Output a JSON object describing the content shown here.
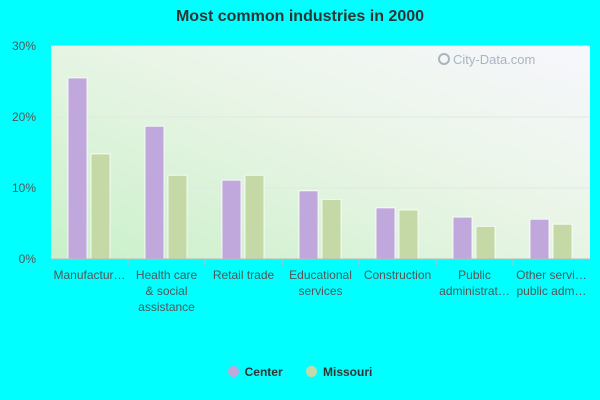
{
  "chart_data": {
    "type": "bar",
    "title": "Most common industries in 2000",
    "xlabel": "",
    "ylabel": "",
    "ylim": [
      0,
      30
    ],
    "yticks": [
      "0%",
      "10%",
      "20%",
      "30%"
    ],
    "ytick_values": [
      0,
      10,
      20,
      30
    ],
    "grid": true,
    "legend_placement": "bottom",
    "categories": [
      [
        "Manufactur…"
      ],
      [
        "Health care",
        "& social",
        "assistance"
      ],
      [
        "Retail trade"
      ],
      [
        "Educational",
        "services"
      ],
      [
        "Construction"
      ],
      [
        "Public",
        "administrat…"
      ],
      [
        "Other servi…",
        "public adm…"
      ]
    ],
    "series": [
      {
        "name": "Center",
        "color": "#c0a8dc",
        "values": [
          25.5,
          18.7,
          11.1,
          9.6,
          7.2,
          5.9,
          5.6
        ]
      },
      {
        "name": "Missouri",
        "color": "#c5d9a6",
        "values": [
          14.8,
          11.8,
          11.8,
          8.4,
          6.9,
          4.6,
          4.9
        ]
      }
    ]
  },
  "watermark": "City-Data.com"
}
